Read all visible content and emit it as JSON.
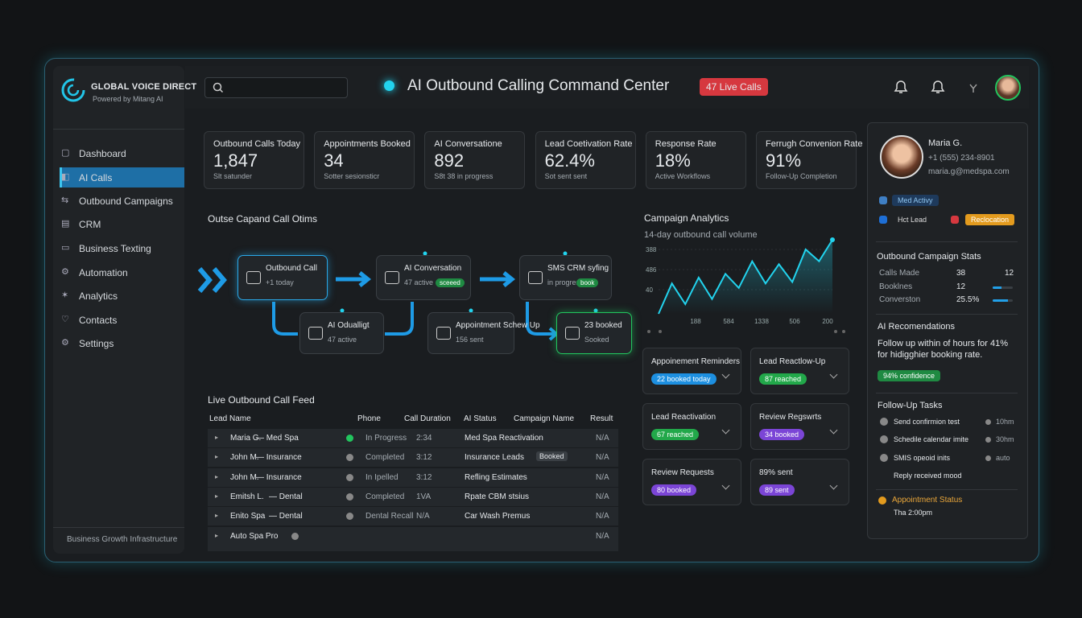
{
  "brand": {
    "name": "GLOBAL VOICE DIRECT",
    "tagline": "Powered by Mitang AI"
  },
  "header": {
    "title": "AI Outbound Calling Command Center",
    "badge": "47 Live Calls"
  },
  "nav": {
    "items": [
      "Dashboard",
      "AI Calls",
      "Outbound Campaigns",
      "CRM",
      "Business Texting",
      "Automation",
      "Analytics",
      "Contacts",
      "Settings"
    ],
    "active": 1,
    "footer": "Business Growth Infrastructure"
  },
  "kpis": [
    {
      "label": "Outbound Calls Today",
      "value": "1,847",
      "sub": "Slt satunder"
    },
    {
      "label": "Appointments Booked",
      "value": "34",
      "sub": "Sotter sesionsticr"
    },
    {
      "label": "AI Conversatione",
      "value": "892",
      "sub": "S8t 38 in progress"
    },
    {
      "label": "Lead Coetivation Rate",
      "value": "62.4%",
      "sub": "Sot sent sent"
    },
    {
      "label": "Response Rate",
      "value": "18%",
      "sub": "Active Workflows"
    },
    {
      "label": "Ferrugh Convenion Rate",
      "value": "91%",
      "sub": "Follow-Up Completion"
    }
  ],
  "flow": {
    "title": "Outse Capand Call Otims",
    "nodes": [
      {
        "label": "Outbound Call",
        "sub": "+1 today"
      },
      {
        "label": "AI Conversation",
        "sub": "47 active",
        "badge": "sceeed"
      },
      {
        "label": "SMS CRM syfing",
        "sub": "in progress",
        "badge": "book"
      },
      {
        "label": "AI Odualligt",
        "sub": "47 active"
      },
      {
        "label": "Appointment Schew Up",
        "sub": "156 sent"
      },
      {
        "label": "23 booked",
        "sub": "Sooked"
      }
    ]
  },
  "analytics": {
    "title": "Campaign Analytics",
    "subtitle": "14-day outbound call volume",
    "y_labels": [
      "388",
      "486",
      "40"
    ],
    "x_labels": [
      "188",
      "584",
      "1338",
      "506",
      "200"
    ],
    "ylim": [
      0,
      100
    ],
    "values": [
      0,
      41,
      13,
      49,
      20,
      54,
      35,
      71,
      41,
      67,
      43,
      87,
      71,
      100
    ],
    "color": "#22d3ee"
  },
  "campaigns": [
    {
      "title": "Appoinement Reminders",
      "badge": "22 booked today",
      "color": "#1d8fe0"
    },
    {
      "title": "Lead Reactlow-Up",
      "badge": "87 reached",
      "color": "#22a84a"
    },
    {
      "title": "Lead Reactivation",
      "badge": "67 reached",
      "color": "#22a84a"
    },
    {
      "title": "Review Regswrts",
      "badge": "34 booked",
      "color": "#7b45d6"
    },
    {
      "title": "Review Requests",
      "badge": "80 booked",
      "color": "#7b45d6"
    },
    {
      "title": "89% sent",
      "badge": "89 sent",
      "color": "#7b45d6"
    }
  ],
  "feed": {
    "title": "Live Outbound Call Feed",
    "columns": [
      "Lead Name",
      "Phone",
      "Call Duration",
      "AI Status",
      "Campaign Name",
      "Result"
    ],
    "rows": [
      {
        "name": "Maria G.",
        "vertical": "— Med Spa",
        "status": "In Progress",
        "duration": "2:34",
        "campaign": "Med Spa Reactivation",
        "result": "N/A"
      },
      {
        "name": "John M.",
        "vertical": "— Insurance",
        "status": "Completed",
        "duration": "3:12",
        "campaign": "Insurance Leads",
        "tag": "Booked",
        "result": "N/A"
      },
      {
        "name": "John M.",
        "vertical": "— Insurance",
        "status": "In Ipelled",
        "duration": "3:12",
        "campaign": "Refling Estimates",
        "result": "N/A"
      },
      {
        "name": "Emitsh L.",
        "vertical": "— Dental",
        "status": "Completed",
        "duration": "1VA",
        "campaign": "Rpate CBM stsius",
        "result": "N/A"
      },
      {
        "name": "Enito Spa",
        "vertical": "— Dental",
        "status": "Dental Recall",
        "duration": "N/A",
        "campaign": "Car Wash Premus",
        "result": "N/A"
      },
      {
        "name": "Auto Spa Pro",
        "result": "N/A"
      }
    ]
  },
  "profile": {
    "name": "Maria G.",
    "phone": "+1 (555) 234-8901",
    "email": "maria.g@medspa.com",
    "tags": [
      "Med Activy",
      "Hct Lead",
      "Reclocation"
    ]
  },
  "stats": {
    "title": "Outbound Campaign Stats",
    "rows": [
      {
        "label": "Calls Made",
        "value": "38",
        "extra": "12"
      },
      {
        "label": "Booklnes",
        "value": "12"
      },
      {
        "label": "Converston",
        "value": "25.5%"
      }
    ]
  },
  "recommendation": {
    "title": "AI Recomendations",
    "text": "Follow up within of hours for 41% for hidigghier booking rate.",
    "badge": "94% confidence"
  },
  "tasks": {
    "title": "Follow-Up Tasks",
    "items": [
      {
        "text": "Send confirmion test",
        "time": "10hm"
      },
      {
        "text": "Schedile calendar imite",
        "time": "30hm"
      },
      {
        "text": "SMIS opeoid inits",
        "time": "auto"
      },
      {
        "text": "Reply received mood"
      }
    ]
  },
  "appointment": {
    "title": "Appointment Status",
    "time": "Tha 2:00pm"
  }
}
